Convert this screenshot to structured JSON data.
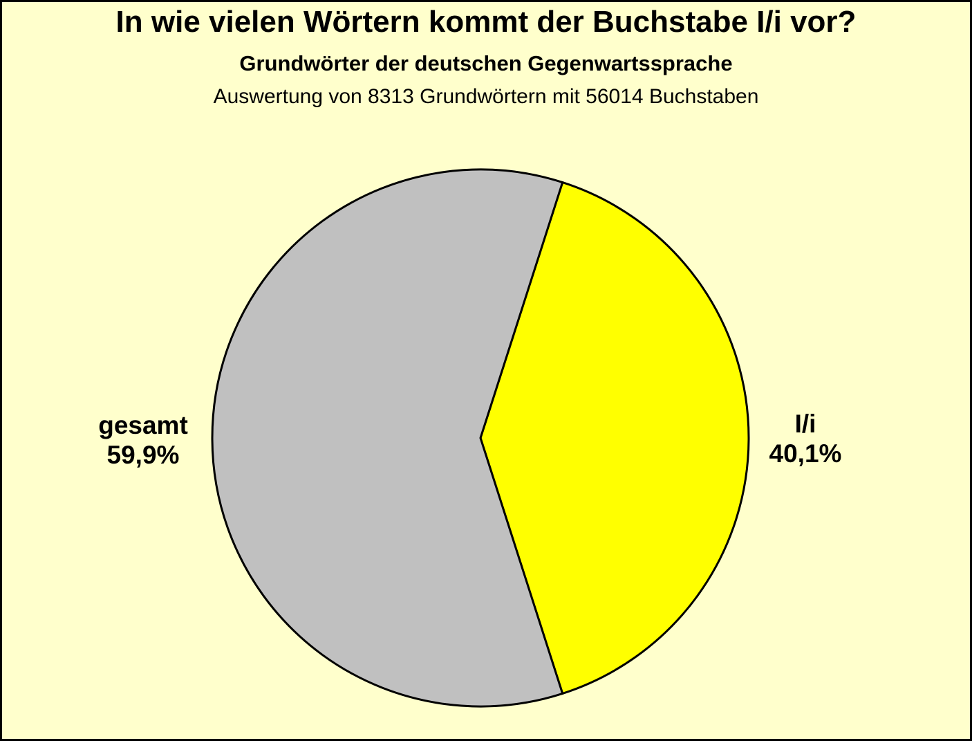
{
  "chart_data": {
    "type": "pie",
    "title": "In wie vielen Wörtern kommt der Buchstabe I/i vor?",
    "subtitle": "Grundwörter der deutschen Gegenwartssprache",
    "caption": "Auswertung von 8313 Grundwörtern mit 56014 Buchstaben",
    "background_color": "#FFFFCC",
    "stroke_color": "#000000",
    "direction": "clockwise",
    "start_angle_deg": -72.18,
    "legend_position": "none",
    "slices": [
      {
        "id": "li",
        "label": "I/i",
        "value": 40.1,
        "pct_label": "40,1%",
        "color": "#FFFF00",
        "label_side": "right"
      },
      {
        "id": "gesamt",
        "label": "gesamt",
        "value": 59.9,
        "pct_label": "59,9%",
        "color": "#C0C0C0",
        "label_side": "left"
      }
    ]
  }
}
